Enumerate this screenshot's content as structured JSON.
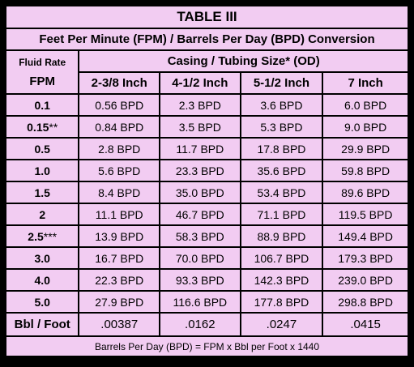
{
  "title": "TABLE III",
  "subtitle": "Feet Per Minute (FPM) / Barrels Per Day (BPD) Conversion",
  "fluid_rate_label": "Fluid Rate",
  "fpm_label": "FPM",
  "casing_header": "Casing / Tubing Size* (OD)",
  "sizes": [
    "2-3/8 Inch",
    "4-1/2 Inch",
    "5-1/2 Inch",
    "7 Inch"
  ],
  "rows": [
    {
      "fpm": "0.1",
      "suffix": "",
      "values": [
        "0.56 BPD",
        "2.3 BPD",
        "3.6 BPD",
        "6.0 BPD"
      ]
    },
    {
      "fpm": "0.15",
      "suffix": "**",
      "values": [
        "0.84 BPD",
        "3.5 BPD",
        "5.3 BPD",
        "9.0 BPD"
      ]
    },
    {
      "fpm": "0.5",
      "suffix": "",
      "values": [
        "2.8 BPD",
        "11.7 BPD",
        "17.8 BPD",
        "29.9 BPD"
      ]
    },
    {
      "fpm": "1.0",
      "suffix": "",
      "values": [
        "5.6 BPD",
        "23.3 BPD",
        "35.6 BPD",
        "59.8 BPD"
      ]
    },
    {
      "fpm": "1.5",
      "suffix": "",
      "values": [
        "8.4 BPD",
        "35.0 BPD",
        "53.4 BPD",
        "89.6 BPD"
      ]
    },
    {
      "fpm": "2",
      "suffix": "",
      "values": [
        "11.1 BPD",
        "46.7 BPD",
        "71.1 BPD",
        "119.5 BPD"
      ]
    },
    {
      "fpm": "2.5",
      "suffix": "***",
      "values": [
        "13.9 BPD",
        "58.3 BPD",
        "88.9 BPD",
        "149.4 BPD"
      ]
    },
    {
      "fpm": "3.0",
      "suffix": "",
      "values": [
        "16.7 BPD",
        "70.0 BPD",
        "106.7 BPD",
        "179.3 BPD"
      ]
    },
    {
      "fpm": "4.0",
      "suffix": "",
      "values": [
        "22.3 BPD",
        "93.3 BPD",
        "142.3 BPD",
        "239.0 BPD"
      ]
    },
    {
      "fpm": "5.0",
      "suffix": "",
      "values": [
        "27.9 BPD",
        "116.6 BPD",
        "177.8 BPD",
        "298.8 BPD"
      ]
    }
  ],
  "bbl_label": "Bbl / Foot",
  "bbl_values": [
    ".00387",
    ".0162",
    ".0247",
    ".0415"
  ],
  "footer": "Barrels Per Day (BPD) = FPM x Bbl per Foot x 1440",
  "colors": {
    "cell_background": "#f2ccf2",
    "grid": "#000000",
    "text": "#000000"
  }
}
